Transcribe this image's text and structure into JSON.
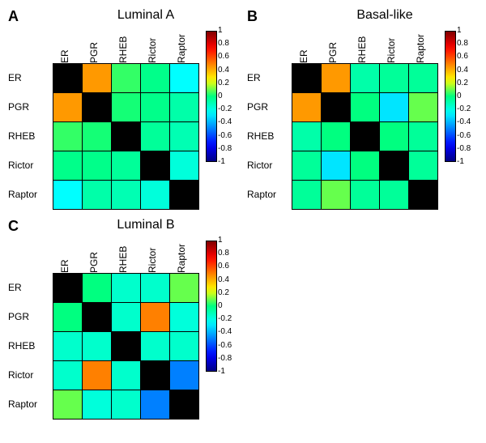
{
  "labels": [
    "ER",
    "PGR",
    "RHEB",
    "Rictor",
    "Raptor"
  ],
  "panels": [
    {
      "letter": "A",
      "title": "Luminal A",
      "values": [
        [
          1.0,
          0.45,
          0.05,
          -0.02,
          -0.25
        ],
        [
          0.45,
          1.0,
          0.02,
          -0.02,
          -0.08
        ],
        [
          0.05,
          0.02,
          1.0,
          -0.05,
          -0.1
        ],
        [
          -0.02,
          -0.02,
          -0.05,
          1.0,
          -0.18
        ],
        [
          -0.25,
          -0.08,
          -0.1,
          -0.18,
          1.0
        ]
      ]
    },
    {
      "letter": "B",
      "title": "Basal-like",
      "values": [
        [
          1.0,
          0.45,
          -0.08,
          -0.05,
          -0.05
        ],
        [
          0.45,
          1.0,
          0.0,
          -0.3,
          0.1
        ],
        [
          -0.08,
          0.0,
          1.0,
          0.0,
          -0.05
        ],
        [
          -0.05,
          -0.3,
          0.0,
          1.0,
          -0.05
        ],
        [
          -0.05,
          0.1,
          -0.05,
          -0.05,
          1.0
        ]
      ]
    },
    {
      "letter": "C",
      "title": "Luminal B",
      "values": [
        [
          1.0,
          0.0,
          -0.15,
          -0.15,
          0.1
        ],
        [
          0.0,
          1.0,
          -0.15,
          0.5,
          -0.18
        ],
        [
          -0.15,
          -0.15,
          1.0,
          -0.15,
          -0.15
        ],
        [
          -0.15,
          0.5,
          -0.15,
          1.0,
          -0.5
        ],
        [
          0.1,
          -0.18,
          -0.15,
          -0.5,
          1.0
        ]
      ]
    }
  ],
  "colorbar": {
    "ticks": [
      "1",
      "0.8",
      "0.6",
      "0.4",
      "0.2",
      "0",
      "-0.2",
      "-0.4",
      "-0.6",
      "-0.8",
      "-1"
    ],
    "width": 12,
    "height": 160
  },
  "style": {
    "cell_size": 36,
    "row_label_width": 50,
    "font_size_label": 12,
    "font_size_title": 16,
    "font_size_letter": 18,
    "font_size_tick": 10,
    "background_color": "#ffffff",
    "diag_color": "#000000",
    "colorscale_note": "jet -1..1"
  }
}
